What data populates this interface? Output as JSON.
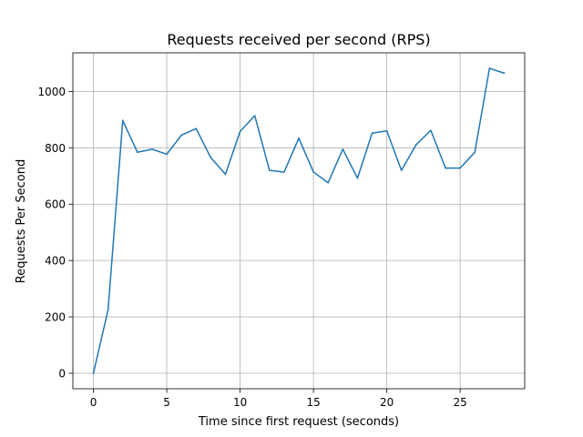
{
  "chart_data": {
    "type": "line",
    "title": "Requests received per second (RPS)",
    "xlabel": "Time since first request (seconds)",
    "ylabel": "Requests Per Second",
    "xlim": [
      -1.4,
      29.4
    ],
    "ylim": [
      -55,
      1137
    ],
    "xticks": [
      0,
      5,
      10,
      15,
      20,
      25
    ],
    "yticks": [
      0,
      200,
      400,
      600,
      800,
      1000
    ],
    "grid": true,
    "colors": {
      "line": "#1f77b4",
      "grid": "#b0b0b0",
      "axes": "#000000"
    },
    "series": [
      {
        "x": [
          0,
          1,
          2,
          3,
          4,
          5,
          6,
          7,
          8,
          9,
          10,
          11,
          12,
          13,
          14,
          15,
          16,
          17,
          18,
          19,
          20,
          21,
          22,
          23,
          24,
          25,
          26,
          27,
          28
        ],
        "values": [
          0,
          225,
          897,
          784,
          795,
          777,
          845,
          868,
          765,
          706,
          858,
          914,
          720,
          714,
          834,
          714,
          676,
          795,
          692,
          852,
          860,
          720,
          811,
          862,
          728,
          728,
          784,
          1082,
          1065
        ]
      }
    ]
  }
}
